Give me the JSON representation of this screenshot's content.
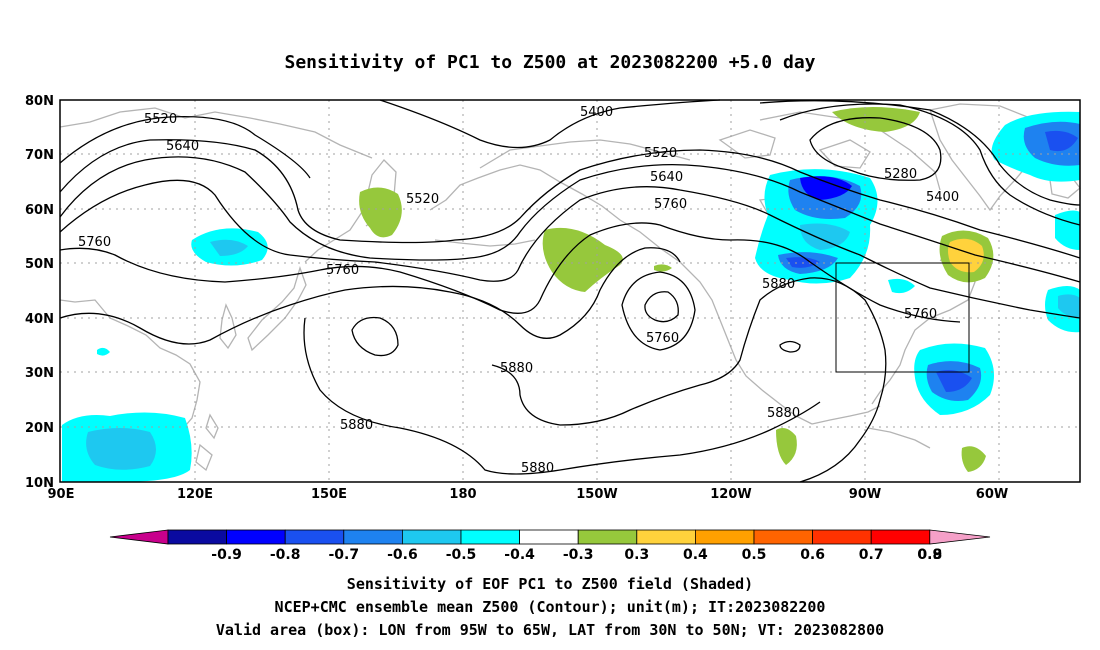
{
  "title": "Sensitivity of PC1 to Z500 at 2023082200 +5.0 day",
  "lat_ticks": [
    "80N",
    "70N",
    "60N",
    "50N",
    "40N",
    "30N",
    "20N",
    "10N"
  ],
  "lon_ticks": [
    "90E",
    "120E",
    "150E",
    "180",
    "150W",
    "120W",
    "90W",
    "60W"
  ],
  "colorbar": {
    "labels": [
      "-0.9",
      "-0.8",
      "-0.7",
      "-0.6",
      "-0.5",
      "-0.4",
      "-0.3",
      "0.3",
      "0.4",
      "0.5",
      "0.6",
      "0.7",
      "0.8",
      "0.9"
    ],
    "colors": [
      "#c8008c",
      "#0a0aa0",
      "#0000ff",
      "#1a50f0",
      "#1e82f0",
      "#1ec8f0",
      "#00ffff",
      "#ffffff",
      "#96c83c",
      "#ffd23c",
      "#ffa000",
      "#ff6400",
      "#ff3200",
      "#ff0000",
      "#f5a0c8"
    ]
  },
  "contour_labels": [
    "5520",
    "5640",
    "5760",
    "5520",
    "5760",
    "5400",
    "5520",
    "5640",
    "5760",
    "5880",
    "5760",
    "5880",
    "5880",
    "5880",
    "5880",
    "5280",
    "5400",
    "5760"
  ],
  "valid_box": {
    "lon_min": -95,
    "lon_max": -65,
    "lat_min": 30,
    "lat_max": 50
  },
  "captions": [
    "Sensitivity of EOF PC1 to Z500 field (Shaded)",
    "NCEP+CMC ensemble mean Z500 (Contour); unit(m); IT:2023082200",
    "Valid area (box): LON from 95W to 65W, LAT from 30N to 50N; VT: 2023082800"
  ]
}
